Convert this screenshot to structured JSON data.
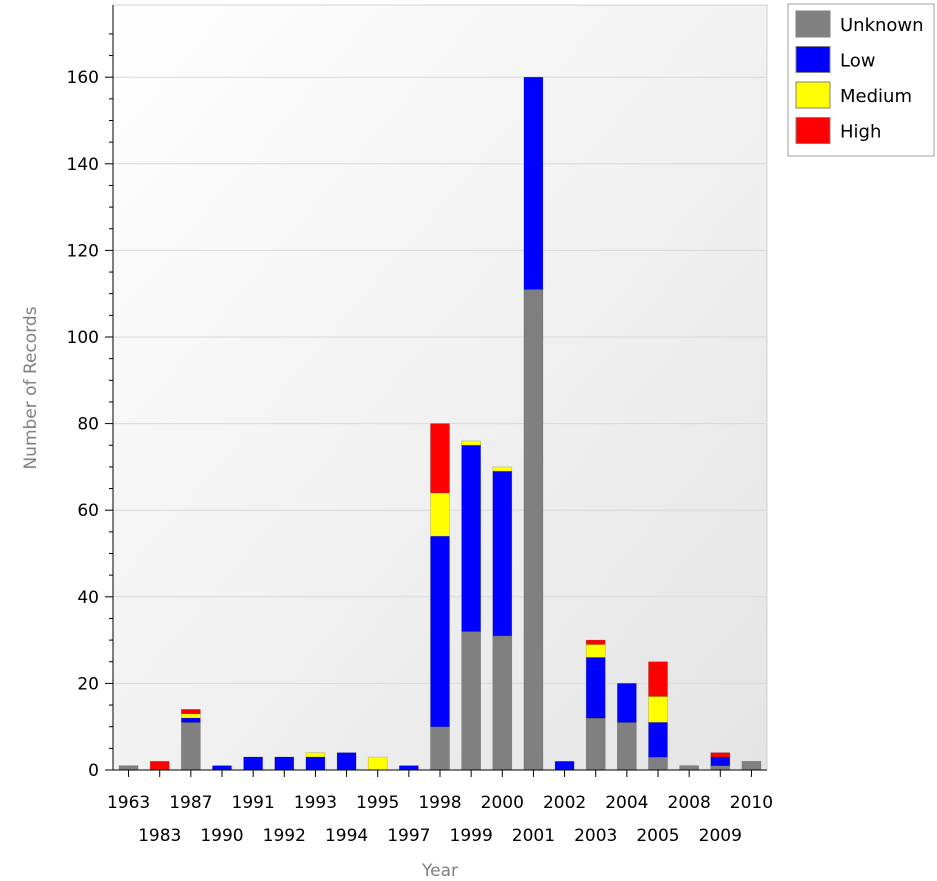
{
  "chart_data": {
    "type": "bar",
    "stacked": true,
    "title": "",
    "xlabel": "Year",
    "ylabel": "Number of Records",
    "ylim": [
      0,
      175
    ],
    "yticks": [
      0,
      20,
      40,
      60,
      80,
      100,
      120,
      140,
      160
    ],
    "grid": "horizontal",
    "legend_position": "top-right",
    "categories": [
      "1963",
      "1983",
      "1987",
      "1990",
      "1991",
      "1992",
      "1993",
      "1994",
      "1995",
      "1997",
      "1998",
      "1999",
      "2000",
      "2001",
      "2002",
      "2003",
      "2004",
      "2005",
      "2008",
      "2009",
      "2010"
    ],
    "series": [
      {
        "name": "Unknown",
        "color": "#808080",
        "values": [
          1,
          0,
          11,
          0,
          0,
          0,
          0,
          0,
          0,
          0,
          10,
          32,
          31,
          111,
          0,
          12,
          11,
          3,
          1,
          1,
          2
        ]
      },
      {
        "name": "Low",
        "color": "#0000ff",
        "values": [
          0,
          0,
          1,
          1,
          3,
          3,
          3,
          4,
          0,
          1,
          44,
          43,
          38,
          49,
          2,
          14,
          9,
          8,
          0,
          2,
          0
        ]
      },
      {
        "name": "Medium",
        "color": "#ffff00",
        "values": [
          0,
          0,
          1,
          0,
          0,
          0,
          1,
          0,
          3,
          0,
          10,
          1,
          1,
          0,
          0,
          3,
          0,
          6,
          0,
          0,
          0
        ]
      },
      {
        "name": "High",
        "color": "#ff0000",
        "values": [
          0,
          2,
          1,
          0,
          0,
          0,
          0,
          0,
          0,
          0,
          16,
          0,
          0,
          0,
          0,
          1,
          0,
          8,
          0,
          1,
          0
        ]
      }
    ]
  }
}
